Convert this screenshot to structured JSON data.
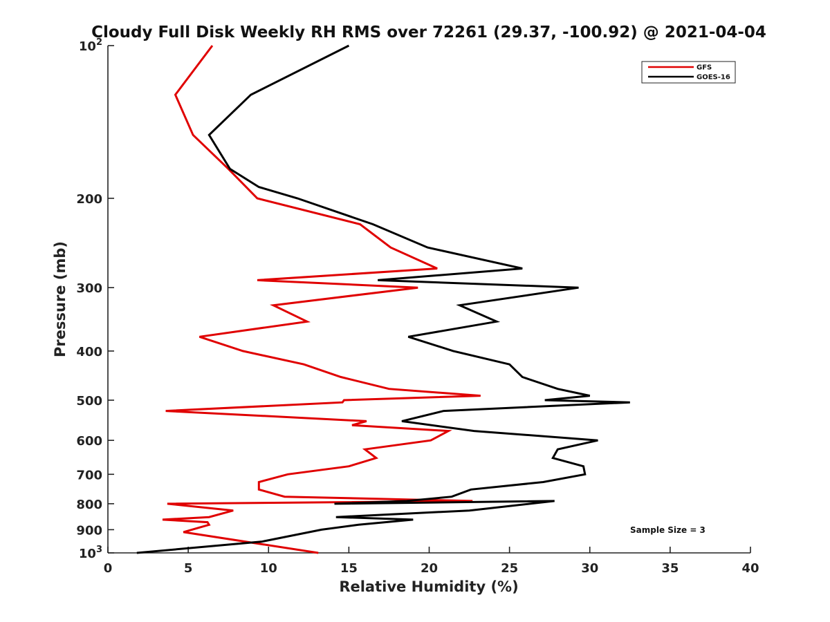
{
  "chart_data": {
    "type": "line",
    "title": "Cloudy Full Disk Weekly RH RMS over 72261 (29.37, -100.92) @ 2021-04-04",
    "xlabel": "Relative Humidity (%)",
    "ylabel": "Pressure (mb)",
    "xlim": [
      0,
      40
    ],
    "ylim": [
      1000,
      100
    ],
    "yscale": "log",
    "grid": false,
    "legend_position": "top-right",
    "x_ticks": [
      "0",
      "5",
      "10",
      "15",
      "20",
      "25",
      "30",
      "35",
      "40"
    ],
    "x_tick_values": [
      0,
      5,
      10,
      15,
      20,
      25,
      30,
      35,
      40
    ],
    "y_ticks": [
      {
        "value": 100,
        "base": "10",
        "exp": "2"
      },
      {
        "value": 200,
        "base": "200",
        "exp": ""
      },
      {
        "value": 300,
        "base": "300",
        "exp": ""
      },
      {
        "value": 400,
        "base": "400",
        "exp": ""
      },
      {
        "value": 500,
        "base": "500",
        "exp": ""
      },
      {
        "value": 600,
        "base": "600",
        "exp": ""
      },
      {
        "value": 700,
        "base": "700",
        "exp": ""
      },
      {
        "value": 800,
        "base": "800",
        "exp": ""
      },
      {
        "value": 900,
        "base": "900",
        "exp": ""
      },
      {
        "value": 1000,
        "base": "10",
        "exp": "3"
      }
    ],
    "annotation": "Sample Size = 3",
    "series": [
      {
        "name": "GFS",
        "color": "#e00000",
        "points": [
          [
            6.5,
            100
          ],
          [
            4.2,
            125
          ],
          [
            5.3,
            150
          ],
          [
            7.5,
            175
          ],
          [
            9.3,
            200
          ],
          [
            15.7,
            225
          ],
          [
            17.6,
            250
          ],
          [
            20.5,
            275
          ],
          [
            9.3,
            290
          ],
          [
            19.3,
            300
          ],
          [
            10.3,
            325
          ],
          [
            12.4,
            350
          ],
          [
            5.7,
            375
          ],
          [
            8.4,
            400
          ],
          [
            12.2,
            425
          ],
          [
            14.5,
            450
          ],
          [
            17.5,
            475
          ],
          [
            23.2,
            490
          ],
          [
            14.7,
            500
          ],
          [
            14.6,
            505
          ],
          [
            3.6,
            525
          ],
          [
            16.1,
            550
          ],
          [
            15.2,
            560
          ],
          [
            21.2,
            575
          ],
          [
            20.1,
            600
          ],
          [
            16.0,
            625
          ],
          [
            16.7,
            650
          ],
          [
            15.0,
            675
          ],
          [
            11.2,
            700
          ],
          [
            9.4,
            725
          ],
          [
            9.4,
            750
          ],
          [
            11.0,
            775
          ],
          [
            22.7,
            790
          ],
          [
            3.7,
            800
          ],
          [
            7.8,
            825
          ],
          [
            6.3,
            850
          ],
          [
            3.4,
            860
          ],
          [
            6.2,
            870
          ],
          [
            6.3,
            880
          ],
          [
            4.7,
            910
          ],
          [
            13.1,
            1000
          ]
        ]
      },
      {
        "name": "GOES-16",
        "color": "#000000",
        "points": [
          [
            15.0,
            100
          ],
          [
            8.9,
            125
          ],
          [
            6.3,
            150
          ],
          [
            7.6,
            175
          ],
          [
            9.4,
            190
          ],
          [
            11.8,
            200
          ],
          [
            16.5,
            225
          ],
          [
            19.9,
            250
          ],
          [
            25.8,
            275
          ],
          [
            16.8,
            290
          ],
          [
            29.3,
            300
          ],
          [
            21.9,
            325
          ],
          [
            24.2,
            350
          ],
          [
            18.7,
            375
          ],
          [
            21.5,
            400
          ],
          [
            25.0,
            425
          ],
          [
            25.8,
            450
          ],
          [
            28.0,
            475
          ],
          [
            30.0,
            490
          ],
          [
            27.2,
            500
          ],
          [
            32.5,
            505
          ],
          [
            20.9,
            525
          ],
          [
            18.3,
            550
          ],
          [
            22.8,
            575
          ],
          [
            30.5,
            600
          ],
          [
            28.0,
            625
          ],
          [
            27.7,
            650
          ],
          [
            29.6,
            675
          ],
          [
            29.7,
            700
          ],
          [
            27.1,
            725
          ],
          [
            22.6,
            750
          ],
          [
            21.4,
            775
          ],
          [
            18.6,
            790
          ],
          [
            14.1,
            800
          ],
          [
            27.8,
            790
          ],
          [
            22.5,
            825
          ],
          [
            14.2,
            850
          ],
          [
            19.0,
            860
          ],
          [
            15.6,
            880
          ],
          [
            13.3,
            900
          ],
          [
            9.6,
            950
          ],
          [
            1.8,
            1000
          ]
        ]
      }
    ]
  }
}
